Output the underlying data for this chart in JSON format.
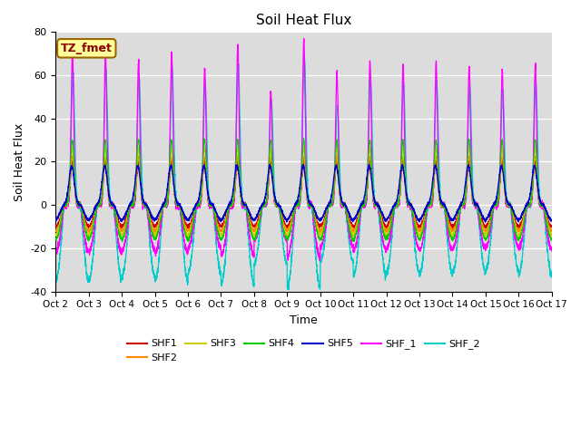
{
  "title": "Soil Heat Flux",
  "xlabel": "Time",
  "ylabel": "Soil Heat Flux",
  "ylim": [
    -40,
    80
  ],
  "xlim": [
    0,
    15
  ],
  "xtick_labels": [
    "Oct 2",
    "Oct 3",
    "Oct 4",
    "Oct 5",
    "Oct 6",
    "Oct 7",
    "Oct 8",
    "Oct 9",
    "Oct 10",
    "Oct 11",
    "Oct 12",
    "Oct 13",
    "Oct 14",
    "Oct 15",
    "Oct 16",
    "Oct 17"
  ],
  "xtick_positions": [
    0,
    1,
    2,
    3,
    4,
    5,
    6,
    7,
    8,
    9,
    10,
    11,
    12,
    13,
    14,
    15
  ],
  "ytick_labels": [
    "-40",
    "-20",
    "0",
    "20",
    "40",
    "60",
    "80"
  ],
  "ytick_positions": [
    -40,
    -20,
    0,
    20,
    40,
    60,
    80
  ],
  "series_colors": {
    "SHF1": "#cc0000",
    "SHF2": "#ff8800",
    "SHF3": "#cccc00",
    "SHF4": "#00cc00",
    "SHF5": "#0000cc",
    "SHF_1": "#ff00ff",
    "SHF_2": "#00cccc"
  },
  "annotation_text": "TZ_fmet",
  "annotation_bg": "#ffff99",
  "annotation_border": "#996600",
  "background_color": "#dcdcdc",
  "fig_bg": "white"
}
